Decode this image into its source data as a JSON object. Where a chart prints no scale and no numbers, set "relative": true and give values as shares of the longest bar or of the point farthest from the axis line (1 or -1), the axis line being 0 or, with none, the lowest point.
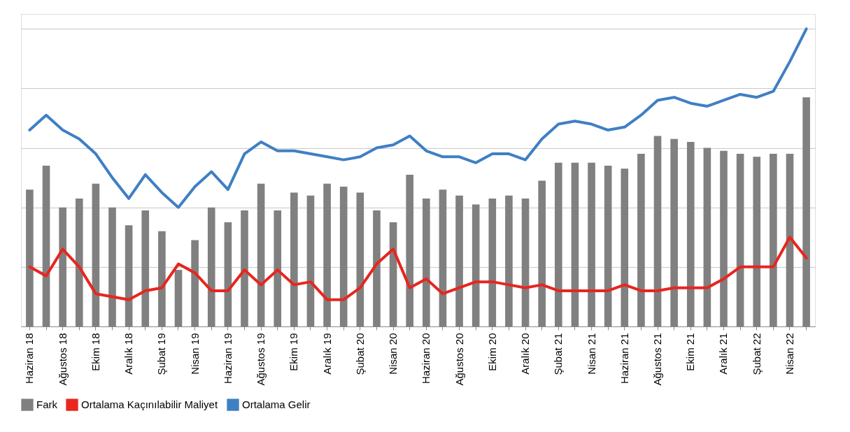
{
  "chart_data": {
    "type": "bar",
    "relative": true,
    "grid": "y",
    "legend": "bottom",
    "categories": [
      "Haziran 18",
      null,
      "Ağustos 18",
      null,
      "Ekim 18",
      null,
      "Aralık 18",
      null,
      "Şubat 19",
      null,
      "Nisan 19",
      null,
      "Haziran 19",
      null,
      "Ağustos 19",
      null,
      "Ekim 19",
      null,
      "Aralık 19",
      null,
      "Şubat 20",
      null,
      "Nisan 20",
      null,
      "Haziran 20",
      null,
      "Ağustos 20",
      null,
      "Ekim 20",
      null,
      "Aralık 20",
      null,
      "Şubat 21",
      null,
      "Nisan 21",
      null,
      "Haziran 21",
      null,
      "Ağustos 21",
      null,
      "Ekim 21",
      null,
      "Aralık 21",
      null,
      "Şubat 22",
      null,
      "Nisan 22",
      null
    ],
    "series": [
      {
        "name": "Fark",
        "color": "#808080",
        "values": [
          0.46,
          0.54,
          0.4,
          0.43,
          0.48,
          0.4,
          0.34,
          0.39,
          0.32,
          0.19,
          0.29,
          0.4,
          0.35,
          0.39,
          0.48,
          0.39,
          0.45,
          0.44,
          0.48,
          0.47,
          0.45,
          0.39,
          0.35,
          0.51,
          0.43,
          0.46,
          0.44,
          0.41,
          0.43,
          0.44,
          0.43,
          0.49,
          0.55,
          0.55,
          0.55,
          0.54,
          0.53,
          0.58,
          0.64,
          0.63,
          0.62,
          0.6,
          0.59,
          0.58,
          0.57,
          0.58,
          0.58,
          0.77
        ]
      },
      {
        "name": "Ortalama Kaçınılabilir Maliyet",
        "type": "line",
        "color": "#e8251f",
        "values": [
          0.2,
          0.17,
          0.26,
          0.2,
          0.11,
          0.1,
          0.09,
          0.12,
          0.13,
          0.21,
          0.18,
          0.12,
          0.12,
          0.19,
          0.14,
          0.19,
          0.14,
          0.15,
          0.09,
          0.09,
          0.13,
          0.21,
          0.26,
          0.13,
          0.16,
          0.11,
          0.13,
          0.15,
          0.15,
          0.14,
          0.13,
          0.14,
          0.12,
          0.12,
          0.12,
          0.12,
          0.14,
          0.12,
          0.12,
          0.13,
          0.13,
          0.13,
          0.16,
          0.2,
          0.2,
          0.2,
          0.3,
          0.23
        ]
      },
      {
        "name": "Ortalama Gelir",
        "type": "line",
        "color": "#3f7fc4",
        "values": [
          0.66,
          0.71,
          0.66,
          0.63,
          0.58,
          0.5,
          0.43,
          0.51,
          0.45,
          0.4,
          0.47,
          0.52,
          0.46,
          0.58,
          0.62,
          0.59,
          0.59,
          0.58,
          0.57,
          0.56,
          0.57,
          0.6,
          0.61,
          0.64,
          0.59,
          0.57,
          0.57,
          0.55,
          0.58,
          0.58,
          0.56,
          0.63,
          0.68,
          0.69,
          0.68,
          0.66,
          0.67,
          0.71,
          0.76,
          0.77,
          0.75,
          0.74,
          0.76,
          0.78,
          0.77,
          0.79,
          0.89,
          1.0
        ]
      }
    ]
  }
}
